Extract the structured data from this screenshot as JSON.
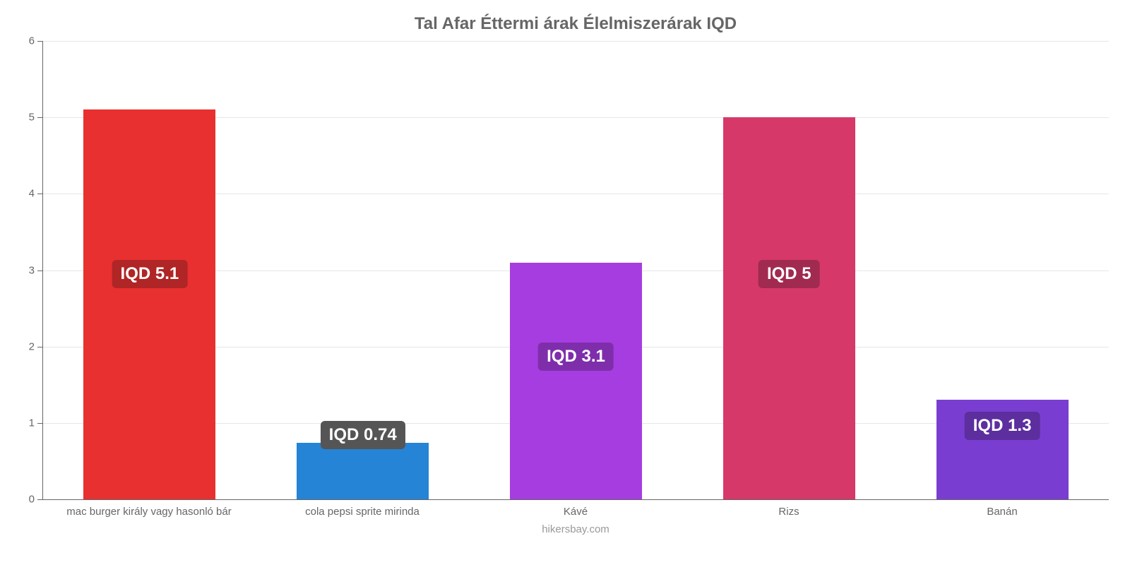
{
  "chart": {
    "type": "bar",
    "title": "Tal Afar Éttermi árak Élelmiszerárak IQD",
    "title_fontsize": 24,
    "title_color": "#666666",
    "footer": "hikersbay.com",
    "footer_fontsize": 15,
    "footer_color": "#999999",
    "background_color": "#ffffff",
    "grid_color": "#e6e6e6",
    "axis_color": "#666666",
    "label_fontsize": 15,
    "label_color": "#666666",
    "ylim": [
      0,
      6
    ],
    "ytick_step": 1,
    "yticks": [
      0,
      1,
      2,
      3,
      4,
      5,
      6
    ],
    "bar_width_pct": 62,
    "value_badge_fontsize": 24,
    "value_badge_text_color": "#ffffff",
    "categories": [
      "mac burger király vagy hasonló bár",
      "cola pepsi sprite mirinda",
      "Kávé",
      "Rizs",
      "Banán"
    ],
    "values": [
      5.1,
      0.74,
      3.1,
      5.0,
      1.3
    ],
    "value_labels": [
      "IQD 5.1",
      "IQD 0.74",
      "IQD 3.1",
      "IQD 5",
      "IQD 1.3"
    ],
    "bar_colors": [
      "#e83030",
      "#2684d6",
      "#a63de0",
      "#d6386a",
      "#7a3dd1"
    ],
    "badge_colors": [
      "#b02525",
      "#555555",
      "#7f2eab",
      "#a12a50",
      "#5c2e9e"
    ],
    "badge_positions_pct_from_bottom": [
      46,
      11,
      28,
      46,
      13
    ]
  }
}
